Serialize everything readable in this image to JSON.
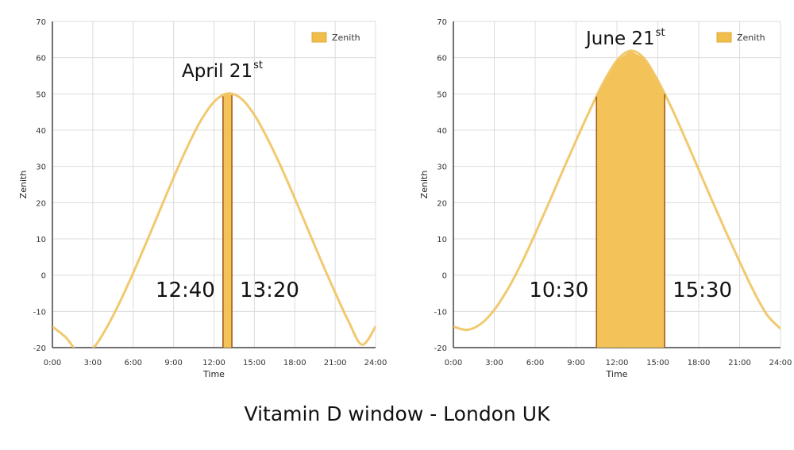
{
  "caption": "Vitamin D window - London UK",
  "chart_data": [
    {
      "type": "area",
      "date_label": "April 21",
      "date_suffix": "st",
      "legend": "Zenith",
      "xlabel": "Time",
      "ylabel": "Zenith",
      "xlim": [
        0,
        24
      ],
      "ylim": [
        -20,
        70
      ],
      "x_ticks": [
        "0:00",
        "3:00",
        "6:00",
        "9:00",
        "12:00",
        "15:00",
        "18:00",
        "21:00",
        "24:00"
      ],
      "y_ticks": [
        -20,
        -10,
        0,
        10,
        20,
        30,
        40,
        50,
        60,
        70
      ],
      "series": [
        {
          "name": "Zenith",
          "x": [
            0,
            1,
            2,
            3,
            4,
            5,
            6,
            7,
            8,
            9,
            10,
            11,
            12,
            13,
            14,
            15,
            16,
            17,
            18,
            19,
            20,
            21,
            22,
            23,
            24
          ],
          "y": [
            -14.2,
            -17.2,
            -21.5,
            -20.2,
            -14.7,
            -7.5,
            0.6,
            9.2,
            18.1,
            26.9,
            35.2,
            42.5,
            47.8,
            50.1,
            48.8,
            44.2,
            37.5,
            29.7,
            21.2,
            12.4,
            3.6,
            -4.8,
            -12.8,
            -19.2,
            -14.2
          ]
        }
      ],
      "window": {
        "start": 12.67,
        "end": 13.33,
        "start_label": "12:40",
        "end_label": "13:20",
        "threshold": 50
      },
      "colors": {
        "curve": "#efc35f",
        "fill": "#f2be4b",
        "edge": "#a35d1a",
        "grid": "#dcdcdc"
      }
    },
    {
      "type": "area",
      "date_label": "June 21",
      "date_suffix": "st",
      "legend": "Zenith",
      "xlabel": "Time",
      "ylabel": "Zenith",
      "xlim": [
        0,
        24
      ],
      "ylim": [
        -20,
        70
      ],
      "x_ticks": [
        "0:00",
        "3:00",
        "6:00",
        "9:00",
        "12:00",
        "15:00",
        "18:00",
        "21:00",
        "24:00"
      ],
      "y_ticks": [
        -20,
        -10,
        0,
        10,
        20,
        30,
        40,
        50,
        60,
        70
      ],
      "series": [
        {
          "name": "Zenith",
          "x": [
            0,
            1,
            2,
            3,
            4,
            5,
            6,
            7,
            8,
            9,
            10,
            11,
            12,
            13,
            14,
            15,
            16,
            17,
            18,
            19,
            20,
            21,
            22,
            23,
            24
          ],
          "y": [
            -14.2,
            -15.1,
            -13.5,
            -9.6,
            -3.8,
            3.3,
            11.4,
            19.9,
            28.6,
            37.1,
            45.4,
            53.1,
            59.2,
            61.9,
            59.8,
            53.7,
            46.2,
            37.8,
            29.1,
            20.4,
            11.9,
            3.7,
            -4.2,
            -10.9,
            -14.8
          ]
        }
      ],
      "window": {
        "start": 10.5,
        "end": 15.5,
        "start_label": "10:30",
        "end_label": "15:30",
        "threshold": 50
      },
      "colors": {
        "curve": "#efc35f",
        "fill": "#f2be4b",
        "edge": "#a35d1a",
        "grid": "#dcdcdc"
      }
    }
  ]
}
